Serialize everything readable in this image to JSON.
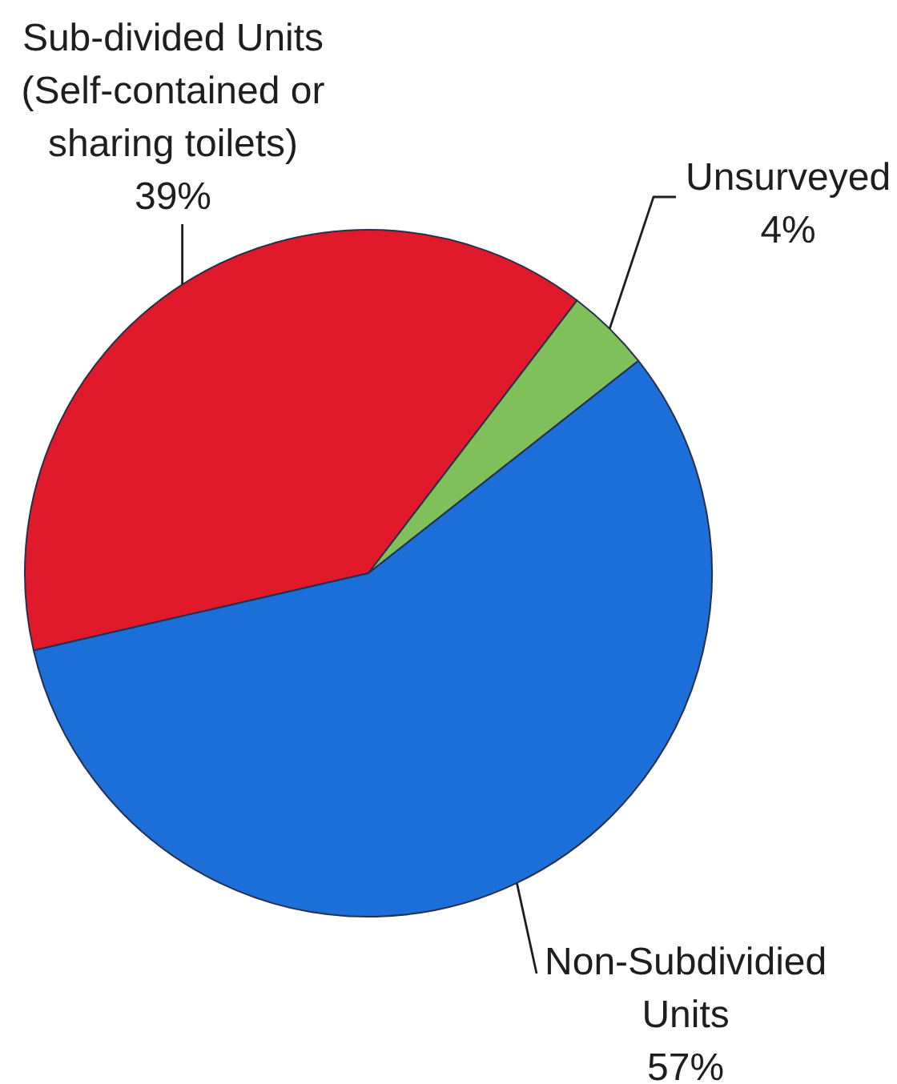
{
  "chart_data": {
    "type": "pie",
    "categories": [
      "Sub-divided Units (Self-contained or sharing toilets)",
      "Unsurveyed",
      "Non-Subdividied Units"
    ],
    "values": [
      39,
      4,
      57
    ],
    "colors": [
      "#e01a2b",
      "#80c05a",
      "#1c6fd8"
    ],
    "value_labels": [
      "39%",
      "4%",
      "57%"
    ]
  }
}
